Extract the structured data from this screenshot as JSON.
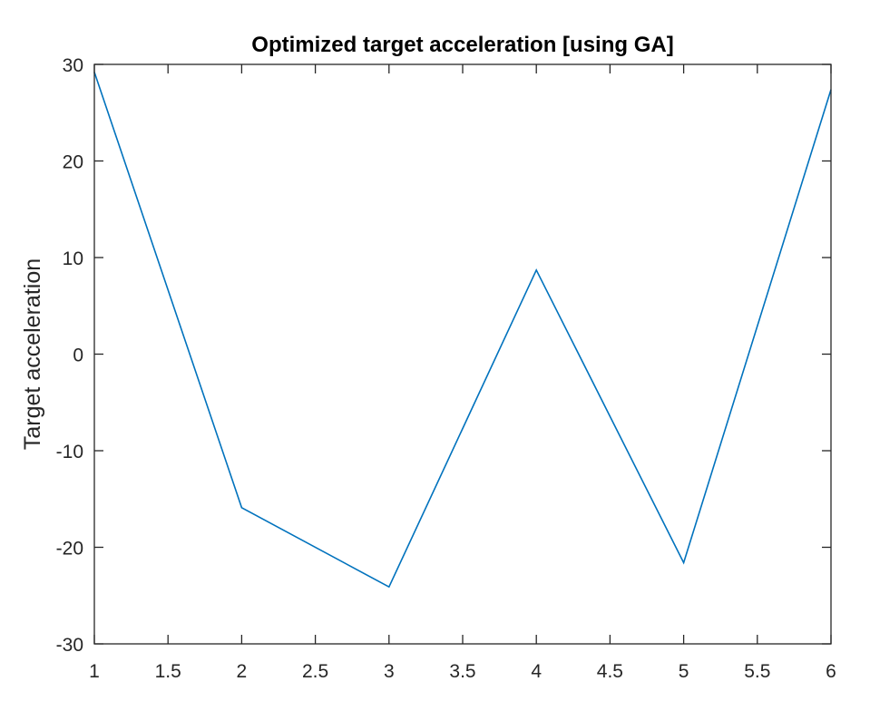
{
  "chart_data": {
    "type": "line",
    "title": "Optimized target acceleration [using GA]",
    "xlabel": "",
    "ylabel": "Target acceleration",
    "xlim": [
      1,
      6
    ],
    "ylim": [
      -30,
      30
    ],
    "xticks": [
      1,
      1.5,
      2,
      2.5,
      3,
      3.5,
      4,
      4.5,
      5,
      5.5,
      6
    ],
    "yticks": [
      -30,
      -20,
      -10,
      0,
      10,
      20,
      30
    ],
    "xtick_labels": [
      "1",
      "1.5",
      "2",
      "2.5",
      "3",
      "3.5",
      "4",
      "4.5",
      "5",
      "5.5",
      "6"
    ],
    "ytick_labels": [
      "-30",
      "-20",
      "-10",
      "0",
      "10",
      "20",
      "30"
    ],
    "grid": false,
    "box": true,
    "series": [
      {
        "x": [
          1,
          2,
          3,
          4,
          5,
          6
        ],
        "values": [
          29.2,
          -15.9,
          -24.1,
          8.7,
          -21.6,
          27.4
        ],
        "color": "#0072BD"
      }
    ]
  }
}
